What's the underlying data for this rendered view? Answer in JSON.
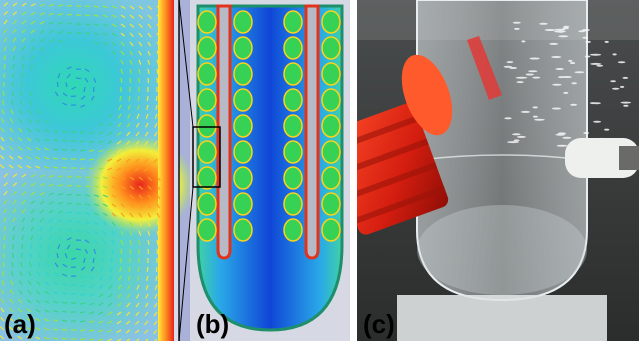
{
  "panels": [
    {
      "id": "a",
      "label": "(a)"
    },
    {
      "id": "b",
      "label": "(b)"
    },
    {
      "id": "c",
      "label": "(c)"
    }
  ]
}
